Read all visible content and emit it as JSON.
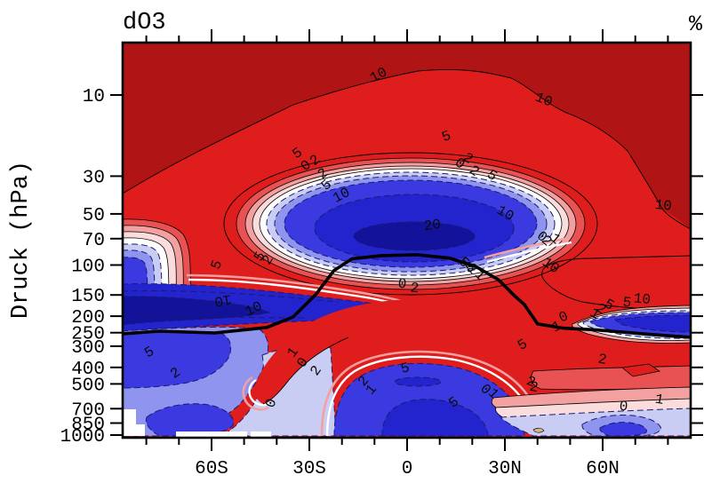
{
  "title": "dO3",
  "unit_label": "%",
  "y_axis": {
    "label": "Druck (hPa)",
    "scale": "log",
    "ticks": [
      10,
      30,
      50,
      70,
      100,
      150,
      200,
      250,
      300,
      400,
      500,
      700,
      850,
      1000
    ],
    "range_hpa": [
      4.9,
      1000
    ]
  },
  "x_axis": {
    "major_ticks": [
      {
        "label": "60S",
        "deg": -60
      },
      {
        "label": "30S",
        "deg": -30
      },
      {
        "label": "0",
        "deg": 0
      },
      {
        "label": "30N",
        "deg": 30
      },
      {
        "label": "60N",
        "deg": 60
      }
    ],
    "minor_step_deg": 10,
    "range_deg": [
      -87.5,
      87
    ]
  },
  "palette": {
    "pos_gt_10": "#B11414",
    "pos_5_10": "#DF1D1D",
    "pos_2_5": "#E85252",
    "pos_1_2": "#F2A0A0",
    "pos_0_1": "#FBDCDC",
    "neg_0_1": "#FFFFFF",
    "neg_1_2": "#C9CDF3",
    "neg_2_5": "#8F95EE",
    "neg_5_10": "#3A3AE0",
    "neg_10_20": "#2424CE",
    "neg_gt_20": "#12129B",
    "contour_negative": "#1A1A70",
    "tropopause_line": "#000000",
    "surface_gap": "#FFFFFF",
    "tan_mark": "#D2B48C"
  },
  "chart_data": {
    "type": "heatmap",
    "variable": "dO3",
    "units": "%",
    "title": "dO3",
    "xlabel_ticks": [
      "60S",
      "30S",
      "0",
      "30N",
      "60N"
    ],
    "ylabel": "Druck (hPa)",
    "contour_levels": [
      -20,
      -10,
      -5,
      -2,
      -1,
      0,
      1,
      2,
      5,
      10,
      20
    ],
    "negative_contours_dashed": true,
    "features": [
      "ozone increase >10% in upper stratosphere (above ~30 hPa) and NH polar stratosphere",
      "closed -5 to -20% minimum in tropical lower stratosphere, 30S-35N, ~30-120 hPa, core < -20%",
      "SH mid/high-latitude decrease band 100-300 hPa, < -10% near 60-90S at ~200 hPa",
      "tropical tropospheric decrease blob ~20S-30N below 500 hPa, < -5%",
      "NH polar decrease band near 250-300 hPa east of 55N",
      "near-surface NH bands 0 to +2%, small decrease blob near 60-75N",
      "positive tongue +5% descending 30-60S through troposphere",
      "thick black tropopause line: ~90 hPa in tropics, ~250 hPa at high latitudes",
      "white surface gaps at bottom-left (Antarctic topography)"
    ],
    "tropopause_deg_hpa": [
      [
        -87.5,
        254
      ],
      [
        -76,
        245
      ],
      [
        -59,
        251
      ],
      [
        -43,
        233
      ],
      [
        -35,
        202
      ],
      [
        -28,
        149
      ],
      [
        -22.5,
        108
      ],
      [
        -17,
        92
      ],
      [
        -8,
        88
      ],
      [
        3,
        87
      ],
      [
        13,
        91
      ],
      [
        21,
        102
      ],
      [
        28,
        122
      ],
      [
        33,
        152
      ],
      [
        36,
        171
      ],
      [
        40,
        222
      ],
      [
        48,
        235
      ],
      [
        57,
        240
      ],
      [
        66,
        248
      ],
      [
        77,
        258
      ],
      [
        87,
        266
      ]
    ],
    "contour_labels": [
      {
        "t": "10",
        "deg": -8.2,
        "p": 8.0,
        "r": -28
      },
      {
        "t": "10",
        "deg": 41.5,
        "p": 11.2,
        "r": 22
      },
      {
        "t": "10",
        "deg": 78.5,
        "p": 47,
        "r": 5
      },
      {
        "t": "5",
        "deg": -33,
        "p": 23,
        "r": -35
      },
      {
        "t": "5",
        "deg": 12.5,
        "p": 18.4,
        "r": -22
      },
      {
        "t": "0",
        "deg": -30.3,
        "p": 27.1,
        "r": -40
      },
      {
        "t": "2",
        "deg": -27.5,
        "p": 25.2,
        "r": -40
      },
      {
        "t": "2",
        "deg": -25.1,
        "p": 30.2,
        "r": -40
      },
      {
        "t": "5",
        "deg": -24,
        "p": 35.3,
        "r": -40
      },
      {
        "t": "10",
        "deg": -19.6,
        "p": 40.8,
        "r": -28
      },
      {
        "t": "20",
        "deg": 7.9,
        "p": 61.5,
        "r": -8
      },
      {
        "t": "0",
        "deg": 15.5,
        "p": 26.4,
        "r": 35
      },
      {
        "t": "2",
        "deg": 18,
        "p": 24.6,
        "r": 35
      },
      {
        "t": "2",
        "deg": 19.9,
        "p": 29.2,
        "r": 35
      },
      {
        "t": "5",
        "deg": 25.4,
        "p": 31,
        "r": 35
      },
      {
        "t": "10",
        "deg": 29.5,
        "p": 52,
        "r": 30
      },
      {
        "t": "5",
        "deg": -44.2,
        "p": 91.5,
        "r": -60
      },
      {
        "t": "2",
        "deg": -41.7,
        "p": 95.7,
        "r": -60
      },
      {
        "t": "5",
        "deg": -57.3,
        "p": 101.5,
        "r": -70
      },
      {
        "t": "10",
        "deg": -56.7,
        "p": 153,
        "r": 170
      },
      {
        "t": "10",
        "deg": -46.6,
        "p": 190,
        "r": -25
      },
      {
        "t": "5",
        "deg": 19.6,
        "p": 109,
        "r": -20
      },
      {
        "t": "0",
        "deg": -1.6,
        "p": 136,
        "r": 5
      },
      {
        "t": "2",
        "deg": 2.2,
        "p": 144,
        "r": 5
      },
      {
        "t": "5",
        "deg": -78.5,
        "p": 341,
        "r": -30
      },
      {
        "t": "2",
        "deg": -70.4,
        "p": 451,
        "r": -35
      },
      {
        "t": "1",
        "deg": -34.1,
        "p": 336,
        "r": -55
      },
      {
        "t": "0",
        "deg": -31.1,
        "p": 387,
        "r": -55
      },
      {
        "t": "2",
        "deg": -27,
        "p": 431,
        "r": -55
      },
      {
        "t": "0",
        "deg": -40.6,
        "p": 661,
        "r": -70
      },
      {
        "t": "5",
        "deg": -0.3,
        "p": 426,
        "r": -15
      },
      {
        "t": "5",
        "deg": 15,
        "p": 672,
        "r": -35
      },
      {
        "t": "2",
        "deg": -12.5,
        "p": 498,
        "r": -50
      },
      {
        "t": "1",
        "deg": -10.1,
        "p": 559,
        "r": -50
      },
      {
        "t": "0",
        "deg": 23.2,
        "p": 559,
        "r": 45
      },
      {
        "t": "1",
        "deg": 25.6,
        "p": 592,
        "r": 45
      },
      {
        "t": "2",
        "deg": 37.6,
        "p": 510,
        "r": 20
      },
      {
        "t": "5",
        "deg": 36,
        "p": 308,
        "r": -30
      },
      {
        "t": "5",
        "deg": 16.6,
        "p": 100,
        "r": 45
      },
      {
        "t": "2",
        "deg": 19.1,
        "p": 109,
        "r": 45
      },
      {
        "t": "1",
        "deg": 21.5,
        "p": 119,
        "r": 45
      },
      {
        "t": "10",
        "deg": 43.4,
        "p": 105,
        "r": 35
      },
      {
        "t": "0",
        "deg": 40.6,
        "p": 71,
        "r": 40
      },
      {
        "t": "2",
        "deg": 42,
        "p": 75,
        "r": 40
      },
      {
        "t": "1",
        "deg": 44.7,
        "p": 73,
        "r": 40
      },
      {
        "t": "5",
        "deg": 67.4,
        "p": 175,
        "r": 5
      },
      {
        "t": "10",
        "deg": 72,
        "p": 167,
        "r": 5
      },
      {
        "t": "1",
        "deg": 57,
        "p": 202,
        "r": 30
      },
      {
        "t": "2",
        "deg": 58.9,
        "p": 190,
        "r": 30
      },
      {
        "t": "5",
        "deg": 61.4,
        "p": 179,
        "r": 30
      },
      {
        "t": "0",
        "deg": 48.5,
        "p": 212,
        "r": -25
      },
      {
        "t": "1",
        "deg": 46.4,
        "p": 241,
        "r": -25
      },
      {
        "t": "2",
        "deg": 59.7,
        "p": 378,
        "r": 10
      },
      {
        "t": "2",
        "deg": 38.7,
        "p": 550,
        "r": 10
      },
      {
        "t": "1",
        "deg": 77.2,
        "p": 650,
        "r": 10
      },
      {
        "t": "0",
        "deg": 66.3,
        "p": 715,
        "r": 5
      }
    ]
  }
}
